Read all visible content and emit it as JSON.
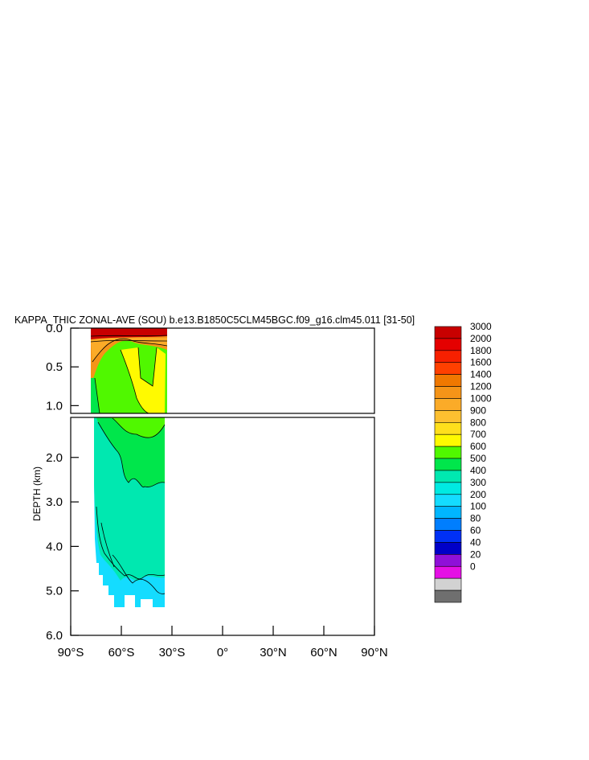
{
  "chart_data": {
    "type": "heatmap",
    "title": "KAPPA_THIC ZONAL-AVE (SOU) b.e13.B1850C5CLM45BGC.f09_g16.clm45.011 [31-50]",
    "ylabel": "DEPTH (km)",
    "xlabel": "",
    "xlim": [
      -90,
      90
    ],
    "ylim": [
      6.0,
      0.0
    ],
    "x_ticks": [
      {
        "value": -90,
        "label": "90°S"
      },
      {
        "value": -60,
        "label": "60°S"
      },
      {
        "value": -30,
        "label": "30°S"
      },
      {
        "value": 0,
        "label": "0°"
      },
      {
        "value": 30,
        "label": "30°N"
      },
      {
        "value": 60,
        "label": "60°N"
      },
      {
        "value": 90,
        "label": "90°N"
      }
    ],
    "y_ticks_upper": [
      {
        "value": 0.0,
        "label": "0.0"
      },
      {
        "value": 0.5,
        "label": "0.5"
      },
      {
        "value": 1.0,
        "label": "1.0"
      }
    ],
    "y_ticks_lower": [
      {
        "value": 2.0,
        "label": "2.0"
      },
      {
        "value": 3.0,
        "label": "3.0"
      },
      {
        "value": 4.0,
        "label": "4.0"
      },
      {
        "value": 5.0,
        "label": "5.0"
      },
      {
        "value": 6.0,
        "label": "6.0"
      }
    ],
    "panel_break_depth": 1.1,
    "colorbar": {
      "levels": [
        "3000",
        "2000",
        "1800",
        "1600",
        "1400",
        "1200",
        "1000",
        "900",
        "800",
        "700",
        "600",
        "500",
        "400",
        "300",
        "200",
        "100",
        "80",
        "60",
        "40",
        "20",
        "0"
      ],
      "colors": [
        "#c80000",
        "#e40000",
        "#f72000",
        "#ff4000",
        "#f07800",
        "#f59418",
        "#fbab28",
        "#fdc030",
        "#ffdf1c",
        "#fffa00",
        "#50f800",
        "#00e64b",
        "#00e8b0",
        "#00eae2",
        "#14dcff",
        "#00b6ff",
        "#007efe",
        "#0030f5",
        "#0000c8",
        "#8f10d8",
        "#e510e5",
        "#d2d2d2",
        "#6f6f6f"
      ]
    },
    "regions": [
      {
        "value_range": "3000+",
        "color": "#c80000",
        "lat_range": [
          -77,
          -32
        ],
        "depth_range": [
          0.0,
          0.08
        ]
      },
      {
        "value_range": "1000-3000",
        "color": "#f59418",
        "lat_range": [
          -77,
          -32
        ],
        "depth_range": [
          0.08,
          0.35
        ]
      },
      {
        "value_range": "800-900",
        "color": "#fffa00",
        "lat_range": [
          -55,
          -34
        ],
        "depth_range": [
          0.3,
          1.2
        ]
      },
      {
        "value_range": "700-800",
        "color": "#50f800",
        "lat_range": [
          -72,
          -34
        ],
        "depth_range": [
          0.2,
          1.2
        ]
      },
      {
        "value_range": "600-700",
        "color": "#00e64b",
        "lat_range": [
          -72,
          -34
        ],
        "depth_range": [
          1.1,
          2.8
        ]
      },
      {
        "value_range": "500-600",
        "color": "#00e8b0",
        "lat_range": [
          -76,
          -34
        ],
        "depth_range": [
          1.1,
          4.8
        ]
      },
      {
        "value_range": "400-500",
        "color": "#14dcff",
        "lat_range": [
          -72,
          -34
        ],
        "depth_range": [
          4.5,
          5.4
        ]
      }
    ]
  }
}
